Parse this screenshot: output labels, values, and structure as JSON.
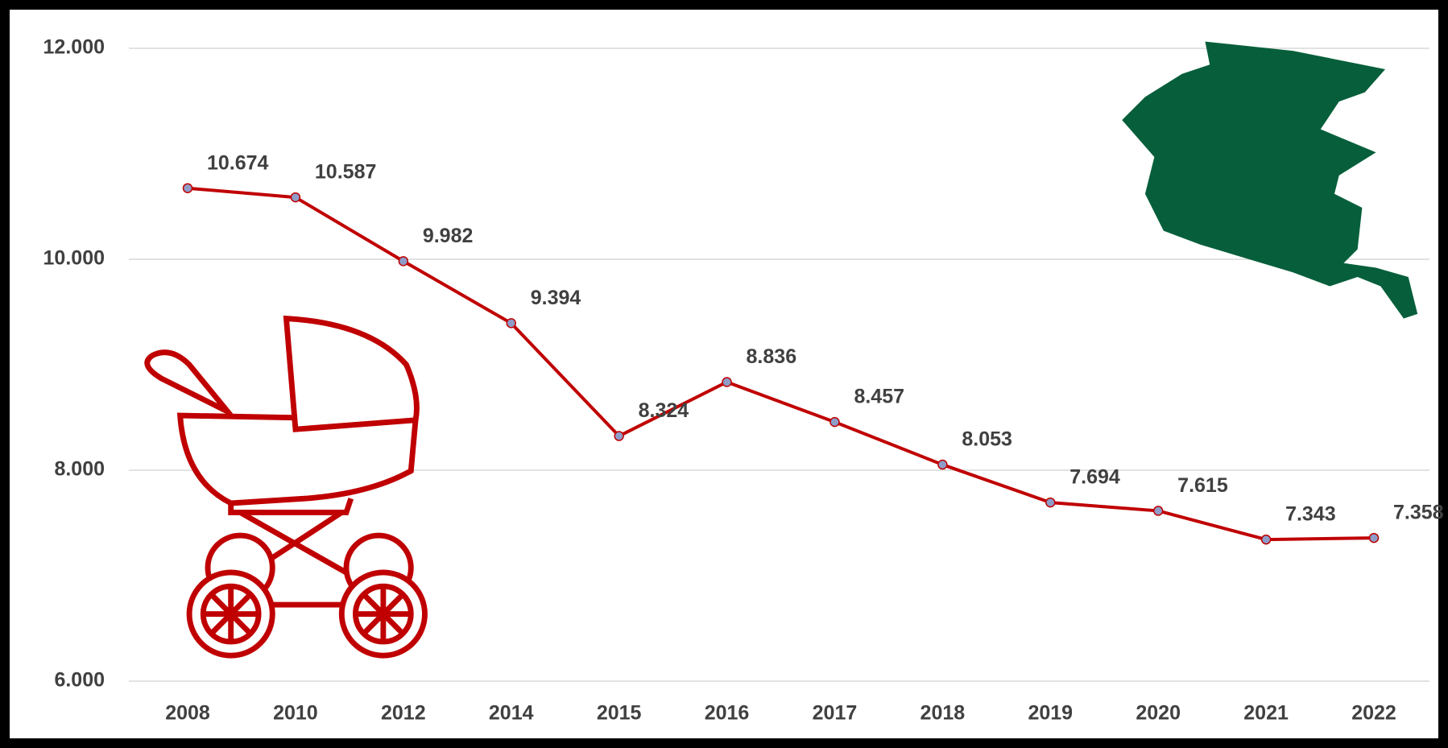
{
  "chart_data": {
    "type": "line",
    "categories": [
      "2008",
      "2010",
      "2012",
      "2014",
      "2015",
      "2016",
      "2017",
      "2018",
      "2019",
      "2020",
      "2021",
      "2022"
    ],
    "values": [
      10674,
      10587,
      9982,
      9394,
      8324,
      8836,
      8457,
      8053,
      7694,
      7615,
      7343,
      7358
    ],
    "value_labels": [
      "10.674",
      "10.587",
      "9.982",
      "9.394",
      "8.324",
      "8.836",
      "8.457",
      "8.053",
      "7.694",
      "7.615",
      "7.343",
      "7.358"
    ],
    "color": "#c00000",
    "marker_color": "#8e9cc8",
    "ylim": [
      6000,
      12000
    ],
    "yticks": [
      {
        "value": 6000,
        "label": "6.000"
      },
      {
        "value": 8000,
        "label": "8.000"
      },
      {
        "value": 10000,
        "label": "10.000"
      },
      {
        "value": 12000,
        "label": "12.000"
      }
    ],
    "grid": true
  }
}
